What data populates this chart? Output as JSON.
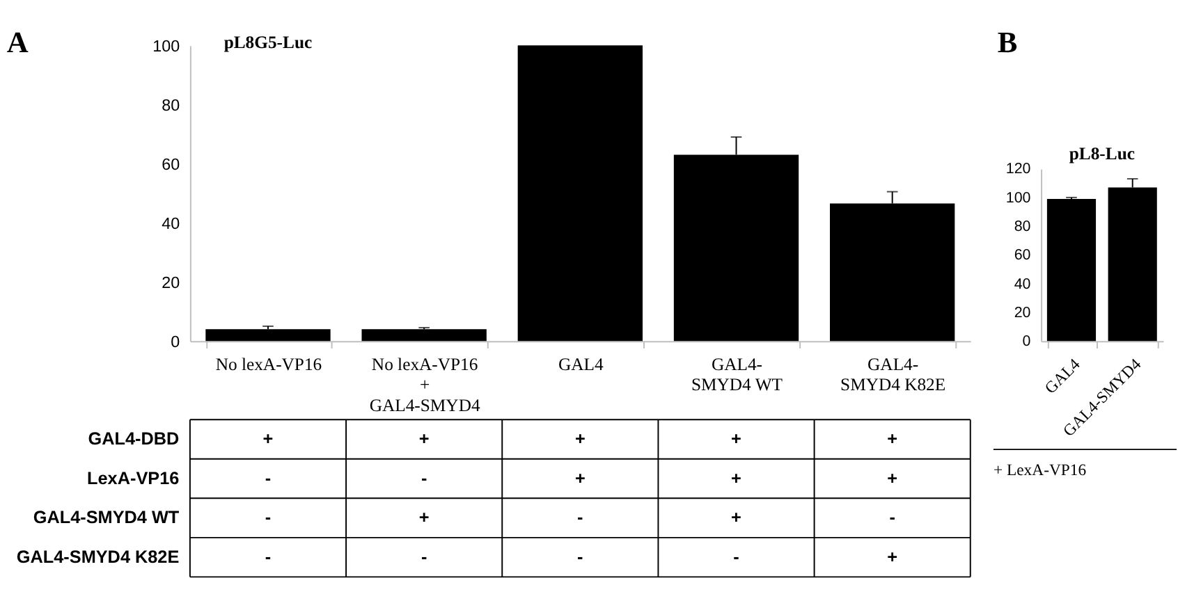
{
  "chart_data": [
    {
      "type": "bar",
      "title": "pL8G5-Luc",
      "categories": [
        "No lexA-VP16",
        "No lexA-VP16\n+\nGAL4-SMYD4",
        "GAL4",
        "GAL4-\nSMYD4 WT",
        "GAL4-\nSMYD4 K82E"
      ],
      "values": [
        4,
        4,
        100,
        63,
        46.5
      ],
      "color": "#000000",
      "errors": [
        [
          4,
          5
        ],
        [
          4,
          4.5
        ],
        null,
        [
          63,
          69
        ],
        [
          46.5,
          50.5
        ]
      ],
      "ylim": [
        0,
        100
      ],
      "yticks": [
        0,
        20,
        40,
        60,
        80,
        100
      ],
      "grid": false,
      "legend": false,
      "annotations": [
        "A",
        "GAL4-DBD",
        "+",
        "+",
        "+",
        "+",
        "+",
        "LexA-VP16",
        "-",
        "-",
        "+",
        "+",
        "+",
        "GAL4-SMYD4 WT",
        "-",
        "+",
        "-",
        "+",
        "-",
        "GAL4-SMYD4 K82E",
        "-",
        "-",
        "-",
        "-",
        "+"
      ]
    },
    {
      "type": "bar",
      "title": "pL8-Luc",
      "categories": [
        "GAL4",
        "GAL4-SMYD4"
      ],
      "values": [
        99,
        107
      ],
      "color": "#000000",
      "errors": [
        [
          99,
          100
        ],
        [
          107,
          113
        ]
      ],
      "ylim": [
        0,
        120
      ],
      "yticks": [
        0,
        20,
        40,
        60,
        80,
        100,
        120
      ],
      "grid": false,
      "legend": false,
      "annotations": [
        "B",
        "+ LexA-VP16"
      ]
    }
  ]
}
